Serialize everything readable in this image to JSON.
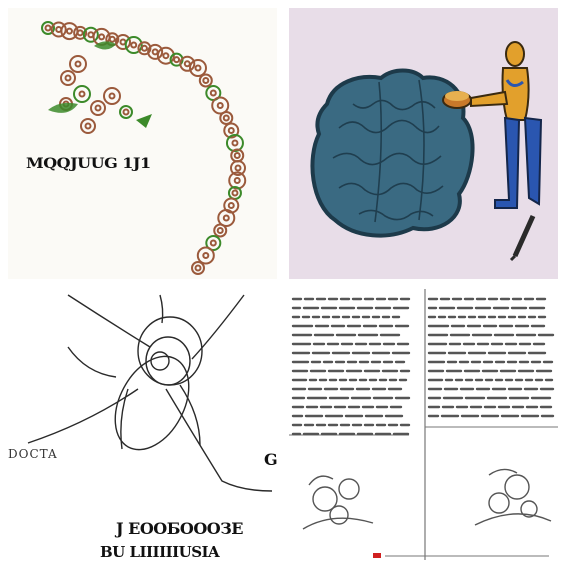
{
  "tiles": [
    {
      "id": "chain-illustration",
      "caption": "MQQJUUG 1J1",
      "colors": {
        "bg": "#fbfaf6",
        "bead": "#9b5a3c",
        "accent": "#3c8a2a"
      }
    },
    {
      "id": "brain-and-figure",
      "colors": {
        "bg": "#e8dde8",
        "brain": "#3a6a82",
        "shirt": "#e2a02c",
        "pants": "#2a56b0"
      }
    },
    {
      "id": "line-sketch",
      "side_label": "DOCTA",
      "letter": "G",
      "caption_line1": "J ЕООБОООЗЕ",
      "caption_line2": "BU LIIIIIIUSIA"
    },
    {
      "id": "document-scan",
      "colors": {
        "bg": "#ffffff",
        "ink": "#555555"
      }
    }
  ]
}
